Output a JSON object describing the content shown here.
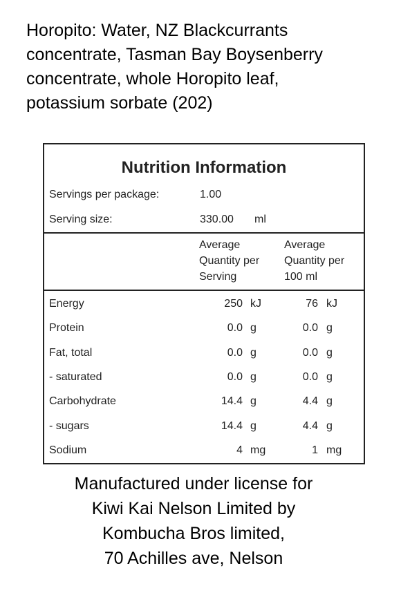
{
  "ingredients": [
    "Horopito: Water, NZ Blackcurrants",
    "concentrate, Tasman Bay Boysenberry",
    "concentrate, whole Horopito leaf,",
    "potassium sorbate (202)"
  ],
  "table": {
    "title": "Nutrition Information",
    "servings": [
      [
        "Servings per package:",
        "1.00",
        ""
      ],
      [
        "Serving size:",
        "330.00",
        "ml"
      ]
    ],
    "header": [
      [
        "Average",
        "Quantity per",
        "Serving"
      ],
      [
        "Average",
        "Quantity per",
        "100 ml"
      ]
    ],
    "rows": [
      [
        "Energy",
        "250",
        "kJ",
        "76",
        "kJ"
      ],
      [
        "Protein",
        "0.0",
        "g",
        "0.0",
        "g"
      ],
      [
        "Fat, total",
        "0.0",
        "g",
        "0.0",
        "g"
      ],
      [
        "- saturated",
        "0.0",
        "g",
        "0.0",
        "g"
      ],
      [
        "Carbohydrate",
        "14.4",
        "g",
        "4.4",
        "g"
      ],
      [
        "- sugars",
        "14.4",
        "g",
        "4.4",
        "g"
      ],
      [
        "Sodium",
        "4",
        "mg",
        "1",
        "mg"
      ]
    ]
  },
  "footer": [
    "Manufactured under license for",
    "Kiwi Kai Nelson Limited by",
    "Kombucha Bros limited,",
    "70 Achilles ave, Nelson"
  ]
}
